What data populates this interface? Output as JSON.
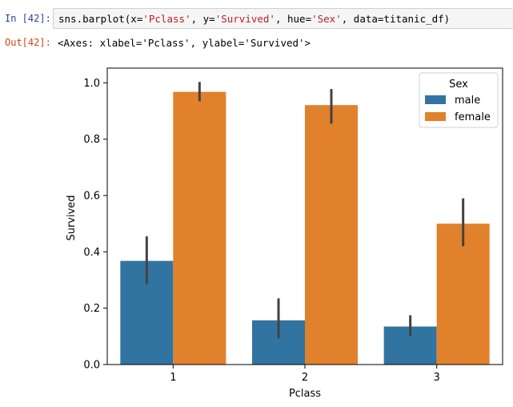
{
  "notebook": {
    "in_prompt": "In [42]:",
    "out_prompt": "Out[42]:",
    "code": {
      "fn": "sns.barplot(x=",
      "x_arg": "'Pclass'",
      "sep1": ", y=",
      "y_arg": "'Survived'",
      "sep2": ", hue=",
      "hue_arg": "'Sex'",
      "tail": ", data=titanic_df)"
    },
    "output_text": "<Axes: xlabel='Pclass', ylabel='Survived'>"
  },
  "colors": {
    "male": "#3274a1",
    "female": "#e1812c",
    "errorbar": "#424242",
    "in_prompt": "#303f9f",
    "out_prompt": "#d84315"
  },
  "chart_data": {
    "type": "bar",
    "title": "",
    "xlabel": "Pclass",
    "ylabel": "Survived",
    "categories": [
      "1",
      "2",
      "3"
    ],
    "ylim": [
      0,
      1.05
    ],
    "yticks": [
      {
        "value": 0.0,
        "label": "0.0"
      },
      {
        "value": 0.2,
        "label": "0.2"
      },
      {
        "value": 0.4,
        "label": "0.4"
      },
      {
        "value": 0.6,
        "label": "0.6"
      },
      {
        "value": 0.8,
        "label": "0.8"
      },
      {
        "value": 1.0,
        "label": "1.0"
      }
    ],
    "series": [
      {
        "name": "male",
        "values": [
          0.368,
          0.157,
          0.135
        ],
        "ci_low": [
          0.285,
          0.093,
          0.101
        ],
        "ci_high": [
          0.455,
          0.235,
          0.175
        ]
      },
      {
        "name": "female",
        "values": [
          0.968,
          0.921,
          0.5
        ],
        "ci_low": [
          0.935,
          0.855,
          0.42
        ],
        "ci_high": [
          1.003,
          0.978,
          0.59
        ]
      }
    ],
    "legend": {
      "title": "Sex",
      "position": "top-right"
    },
    "grid": false
  }
}
